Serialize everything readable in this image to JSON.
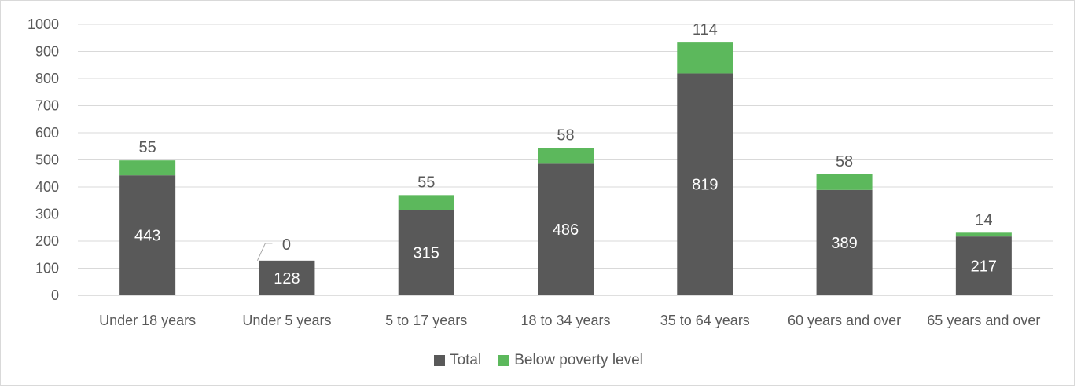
{
  "chart_data": {
    "type": "bar",
    "stacked": true,
    "categories": [
      "Under 18 years",
      "Under 5 years",
      "5 to 17 years",
      "18 to 34 years",
      "35 to 64 years",
      "60 years and over",
      "65 years and over"
    ],
    "series": [
      {
        "name": "Total",
        "color": "#595959",
        "values": [
          443,
          128,
          315,
          486,
          819,
          389,
          217
        ]
      },
      {
        "name": "Below poverty level",
        "color": "#5cb85c",
        "values": [
          55,
          0,
          55,
          58,
          114,
          58,
          14
        ]
      }
    ],
    "y_ticks": [
      "0",
      "100",
      "200",
      "300",
      "400",
      "500",
      "600",
      "700",
      "800",
      "900",
      "1000"
    ],
    "ylim": [
      0,
      1000
    ],
    "grid": true,
    "legend_position": "bottom"
  }
}
